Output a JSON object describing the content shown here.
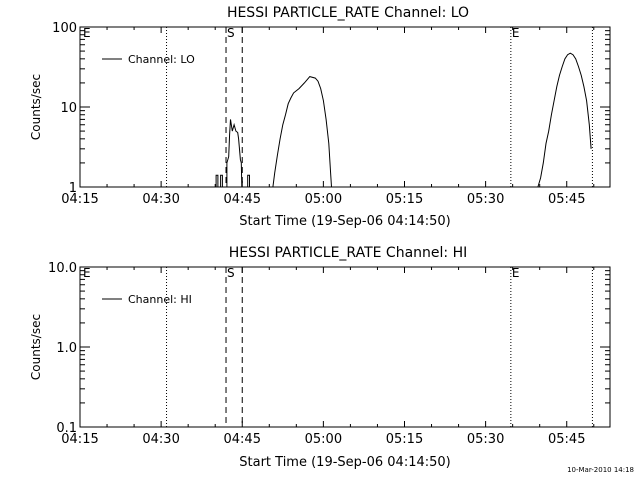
{
  "footer": {
    "timestamp": "10-Mar-2010 14:18"
  },
  "chart_data": [
    {
      "type": "line",
      "title": "HESSI PARTICLE_RATE Channel: LO",
      "xlabel": "Start Time (19-Sep-06 04:14:50)",
      "ylabel": "Counts/sec",
      "xlim": [
        "04:15",
        "05:53"
      ],
      "ylim": [
        1,
        100
      ],
      "yscale": "log",
      "x_ticks": [
        "04:15",
        "04:30",
        "04:45",
        "05:00",
        "05:15",
        "05:30",
        "05:45"
      ],
      "y_ticks": [
        "1",
        "10",
        "100"
      ],
      "grid": false,
      "legend_position": "top-left",
      "series": [
        {
          "name": "Channel: LO",
          "segments": [
            [
              [
                "04:40:10",
                0.8
              ],
              [
                "04:40:10",
                1.4
              ],
              [
                "04:40:30",
                1.4
              ],
              [
                "04:40:30",
                0.8
              ]
            ],
            [
              [
                "04:41:00",
                0.8
              ],
              [
                "04:41:00",
                1.4
              ],
              [
                "04:41:20",
                1.4
              ],
              [
                "04:41:20",
                0.8
              ]
            ],
            [
              [
                "04:42:10",
                0.8
              ],
              [
                "04:42:10",
                2.0
              ],
              [
                "04:42:30",
                2.4
              ],
              [
                "04:42:40",
                4.5
              ],
              [
                "04:42:50",
                7.0
              ],
              [
                "04:43:10",
                5.0
              ],
              [
                "04:43:30",
                6.0
              ],
              [
                "04:43:50",
                5.0
              ],
              [
                "04:44:10",
                4.8
              ],
              [
                "04:44:20",
                4.0
              ],
              [
                "04:44:40",
                2.2
              ],
              [
                "04:44:50",
                2.0
              ],
              [
                "04:44:55",
                0.8
              ]
            ],
            [
              [
                "04:46:00",
                0.8
              ],
              [
                "04:46:00",
                1.4
              ],
              [
                "04:46:20",
                1.4
              ],
              [
                "04:46:20",
                0.8
              ]
            ],
            [
              [
                "04:50:40",
                0.8
              ],
              [
                "04:51:00",
                1.5
              ],
              [
                "04:51:30",
                2.5
              ],
              [
                "04:52:00",
                4.0
              ],
              [
                "04:52:30",
                6.0
              ],
              [
                "04:53:00",
                8.0
              ],
              [
                "04:53:30",
                11.0
              ],
              [
                "04:54:00",
                13.0
              ],
              [
                "04:54:30",
                15.0
              ],
              [
                "04:55:30",
                17.0
              ],
              [
                "04:56:30",
                20.0
              ],
              [
                "04:57:30",
                24.0
              ],
              [
                "04:58:30",
                23.0
              ],
              [
                "04:59:00",
                21.0
              ],
              [
                "04:59:30",
                17.0
              ],
              [
                "05:00:00",
                12.0
              ],
              [
                "05:00:30",
                7.0
              ],
              [
                "05:01:00",
                3.5
              ],
              [
                "05:01:20",
                1.5
              ],
              [
                "05:01:30",
                0.8
              ]
            ],
            [
              [
                "05:39:40",
                0.8
              ],
              [
                "05:40:10",
                1.3
              ],
              [
                "05:40:40",
                2.0
              ],
              [
                "05:41:10",
                3.5
              ],
              [
                "05:41:40",
                5.0
              ],
              [
                "05:42:10",
                8.0
              ],
              [
                "05:42:40",
                12.0
              ],
              [
                "05:43:10",
                18.0
              ],
              [
                "05:43:40",
                25.0
              ],
              [
                "05:44:10",
                32.0
              ],
              [
                "05:44:40",
                40.0
              ],
              [
                "05:45:10",
                45.0
              ],
              [
                "05:45:40",
                47.0
              ],
              [
                "05:46:10",
                45.0
              ],
              [
                "05:46:40",
                40.0
              ],
              [
                "05:47:10",
                32.0
              ],
              [
                "05:47:40",
                25.0
              ],
              [
                "05:48:10",
                18.0
              ],
              [
                "05:48:40",
                12.0
              ],
              [
                "05:49:10",
                6.0
              ],
              [
                "05:49:30",
                3.0
              ]
            ]
          ]
        }
      ],
      "markers": [
        {
          "label": "E",
          "time": "04:15",
          "style": "none"
        },
        {
          "label": "",
          "time": "04:31",
          "style": "dotted"
        },
        {
          "label": "S",
          "time": "04:42",
          "style": "dashed"
        },
        {
          "label": "",
          "time": "04:45",
          "style": "dashed"
        },
        {
          "label": "E",
          "time": "05:34:40",
          "style": "dotted"
        },
        {
          "label": "",
          "time": "05:49:45",
          "style": "dotted"
        }
      ]
    },
    {
      "type": "line",
      "title": "HESSI PARTICLE_RATE Channel: HI",
      "xlabel": "Start Time (19-Sep-06 04:14:50)",
      "ylabel": "Counts/sec",
      "xlim": [
        "04:15",
        "05:53"
      ],
      "ylim": [
        0.1,
        10
      ],
      "yscale": "log",
      "x_ticks": [
        "04:15",
        "04:30",
        "04:45",
        "05:00",
        "05:15",
        "05:30",
        "05:45"
      ],
      "y_ticks": [
        "0.1",
        "1.0",
        "10.0"
      ],
      "grid": false,
      "legend_position": "top-left",
      "series": [
        {
          "name": "Channel: HI",
          "segments": []
        }
      ],
      "markers": [
        {
          "label": "E",
          "time": "04:15",
          "style": "none"
        },
        {
          "label": "",
          "time": "04:31",
          "style": "dotted"
        },
        {
          "label": "S",
          "time": "04:42",
          "style": "dashed"
        },
        {
          "label": "",
          "time": "04:45",
          "style": "dashed"
        },
        {
          "label": "E",
          "time": "05:34:40",
          "style": "dotted"
        },
        {
          "label": "",
          "time": "05:49:45",
          "style": "dotted"
        }
      ]
    }
  ]
}
